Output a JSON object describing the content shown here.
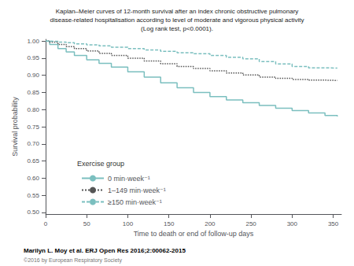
{
  "chart_data": {
    "type": "line",
    "title": "Kaplan–Meier curves of 12-month survival after an index chronic obstructive pulmonary\ndisease-related hospitalisation according to level of moderate and vigorous physical activity\n(Log rank test, p<0.0001).",
    "xlabel": "Time to death or end of follow-up days",
    "ylabel": "Survival probability",
    "x": [
      0,
      5,
      15,
      25,
      35,
      50,
      65,
      80,
      100,
      120,
      140,
      160,
      180,
      200,
      220,
      240,
      260,
      280,
      300,
      320,
      340,
      355
    ],
    "series": [
      {
        "name": "0 min·week⁻¹",
        "color": "#7bbfbf",
        "line_style": "solid",
        "values": [
          1.0,
          0.99,
          0.978,
          0.968,
          0.958,
          0.945,
          0.935,
          0.924,
          0.91,
          0.895,
          0.878,
          0.864,
          0.85,
          0.838,
          0.828,
          0.82,
          0.812,
          0.804,
          0.797,
          0.79,
          0.783,
          0.78
        ]
      },
      {
        "name": "1–149 min·week⁻¹",
        "color": "#555555",
        "line_style": "dotted",
        "values": [
          1.0,
          0.997,
          0.99,
          0.984,
          0.978,
          0.971,
          0.964,
          0.958,
          0.95,
          0.942,
          0.934,
          0.926,
          0.92,
          0.913,
          0.907,
          0.901,
          0.895,
          0.891,
          0.888,
          0.886,
          0.885,
          0.884
        ]
      },
      {
        "name": "≥150 min·week⁻¹",
        "color": "#7bbfbf",
        "line_style": "dashed",
        "values": [
          1.0,
          0.999,
          0.997,
          0.995,
          0.992,
          0.989,
          0.986,
          0.982,
          0.978,
          0.974,
          0.97,
          0.966,
          0.963,
          0.958,
          0.953,
          0.948,
          0.94,
          0.933,
          0.926,
          0.922,
          0.921,
          0.92
        ]
      }
    ],
    "xlim": [
      0,
      360
    ],
    "ylim": [
      0.495,
      1.005
    ],
    "xticks": [
      0,
      50,
      100,
      150,
      200,
      250,
      300,
      350
    ],
    "yticks": [
      {
        "value": 0.5,
        "label": "0.50"
      },
      0.55,
      {
        "value": 0.6,
        "label": "0.60"
      },
      0.65,
      {
        "value": 0.7,
        "label": "0.70"
      },
      0.75,
      {
        "value": 0.8,
        "label": "0.80"
      },
      0.85,
      {
        "value": 0.9,
        "label": "0.90"
      },
      0.95,
      {
        "value": 1.0,
        "label": "1.00"
      }
    ],
    "grid": false,
    "legend": "lower left",
    "legend_title": "Exercise group",
    "annotations": [
      "Marilyn L. Moy et al. ERJ Open Res 2016;2:00062-2015",
      "©2016 by European Respiratory Society"
    ]
  }
}
